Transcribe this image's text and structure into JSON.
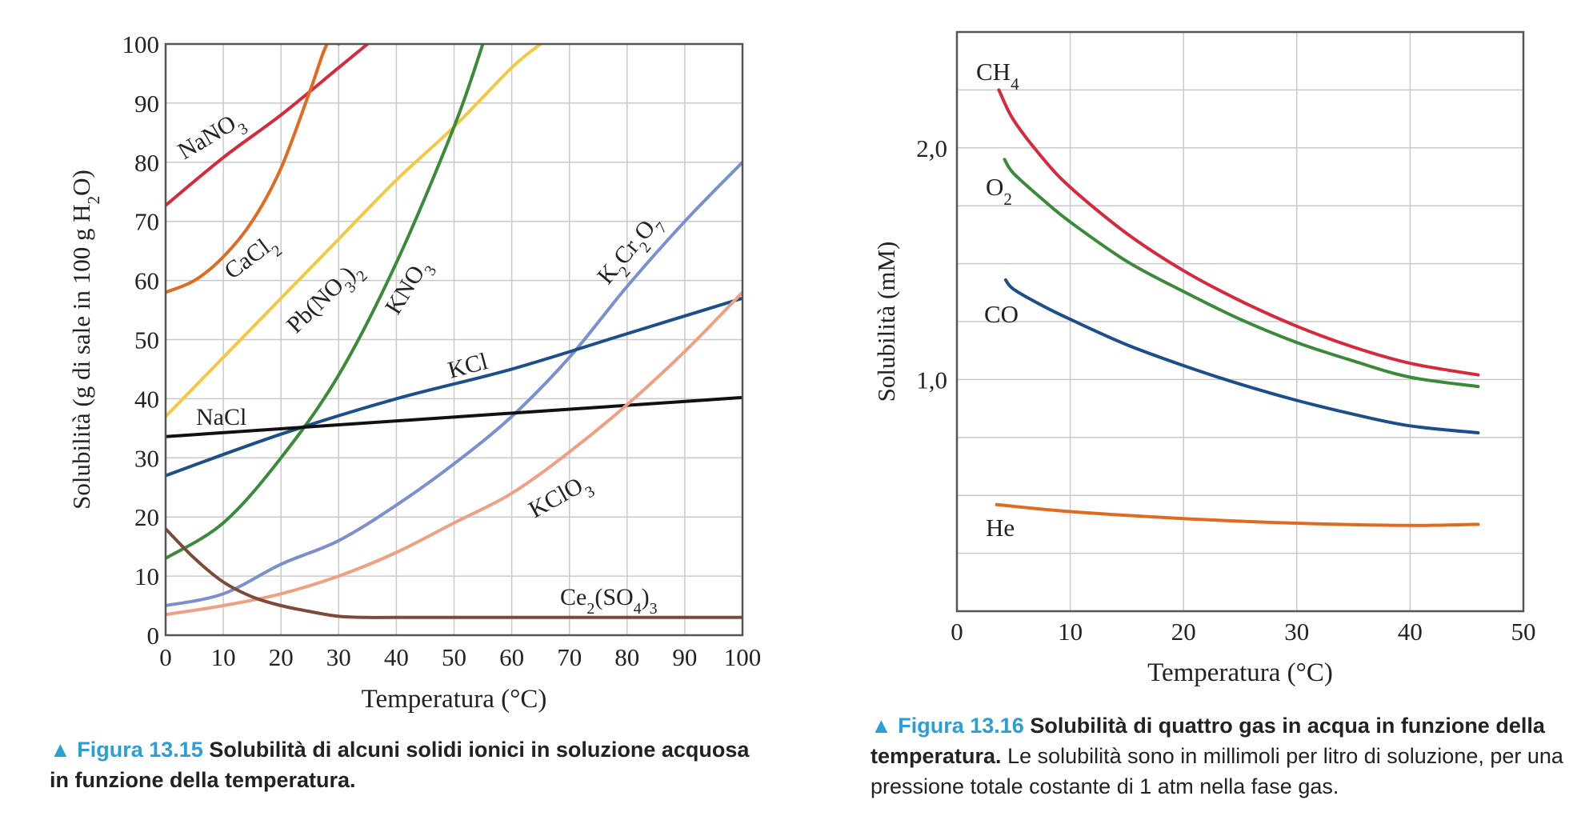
{
  "chart_data": [
    {
      "type": "line",
      "xlabel": "Temperatura (°C)",
      "ylabel_parts": [
        "Solubilità (g di sale in 100 g H",
        "2",
        "O)"
      ],
      "xlim": [
        0,
        100
      ],
      "ylim": [
        0,
        100
      ],
      "xticks": [
        0,
        10,
        20,
        30,
        40,
        50,
        60,
        70,
        80,
        90,
        100
      ],
      "yticks": [
        0,
        10,
        20,
        30,
        40,
        50,
        60,
        70,
        80,
        90,
        100
      ],
      "grid": true,
      "series": [
        {
          "name": "NaNO₃",
          "color": "#d8283c",
          "x": [
            0,
            10,
            20,
            30,
            35
          ],
          "y": [
            72.7,
            80.8,
            88.0,
            96.0,
            100
          ]
        },
        {
          "name": "CaCl₂",
          "color": "#e06a20",
          "x": [
            0,
            5,
            10,
            15,
            20,
            25,
            28,
            30
          ],
          "y": [
            58,
            60,
            64,
            70,
            79,
            92,
            100,
            100
          ]
        },
        {
          "name": "Pb(NO₃)₂",
          "color": "#f5c842",
          "x": [
            0,
            10,
            20,
            30,
            40,
            50,
            60,
            65
          ],
          "y": [
            37,
            47,
            57,
            67,
            77,
            86,
            96,
            100
          ]
        },
        {
          "name": "KNO₃",
          "color": "#3a8a3a",
          "x": [
            0,
            10,
            20,
            30,
            40,
            50,
            55
          ],
          "y": [
            13,
            19,
            30,
            44,
            63,
            86,
            100
          ]
        },
        {
          "name": "K₂Cr₂O₇",
          "color": "#7b8fcf",
          "x": [
            0,
            10,
            20,
            30,
            40,
            50,
            60,
            70,
            80,
            90,
            100
          ],
          "y": [
            5,
            7,
            12,
            16,
            22,
            29,
            37,
            47,
            59,
            70,
            80
          ]
        },
        {
          "name": "KCl",
          "color": "#1b4f8a",
          "x": [
            0,
            20,
            40,
            60,
            80,
            100
          ],
          "y": [
            27,
            34,
            40,
            45,
            51,
            57
          ]
        },
        {
          "name": "NaCl",
          "color": "#111111",
          "x": [
            0,
            100
          ],
          "y": [
            33.6,
            40.2
          ]
        },
        {
          "name": "KClO₃",
          "color": "#f0a080",
          "x": [
            0,
            10,
            20,
            30,
            40,
            50,
            60,
            70,
            80,
            90,
            100
          ],
          "y": [
            3.5,
            5,
            7,
            10,
            14,
            19,
            24,
            31,
            39,
            48,
            58
          ]
        },
        {
          "name": "Ce₂(SO₄)₃",
          "color": "#7b4a3a",
          "x": [
            0,
            5,
            10,
            15,
            20,
            25,
            30,
            35,
            40,
            60,
            80,
            100
          ],
          "y": [
            18,
            13,
            9,
            6.5,
            5,
            4,
            3.2,
            3,
            3,
            3,
            3,
            3
          ]
        }
      ],
      "labels": [
        {
          "series": "NaNO₃",
          "parts": [
            [
              "Na",
              "n"
            ],
            [
              "NO",
              "n"
            ],
            [
              "3",
              "sub"
            ]
          ]
        },
        {
          "series": "CaCl₂",
          "parts": [
            [
              "CaCl",
              "n"
            ],
            [
              "2",
              "sub"
            ]
          ]
        },
        {
          "series": "Pb(NO₃)₂",
          "parts": [
            [
              "Pb(NO",
              "n"
            ],
            [
              "3",
              "sub"
            ],
            [
              ")",
              "n"
            ],
            [
              "2",
              "sub"
            ]
          ]
        },
        {
          "series": "KNO₃",
          "parts": [
            [
              "KNO",
              "n"
            ],
            [
              "3",
              "sub"
            ]
          ]
        },
        {
          "series": "K₂Cr₂O₇",
          "parts": [
            [
              "K",
              "n"
            ],
            [
              "2",
              "sub"
            ],
            [
              "Cr",
              "n"
            ],
            [
              "2",
              "sub"
            ],
            [
              "O",
              "n"
            ],
            [
              "7",
              "sub"
            ]
          ]
        },
        {
          "series": "KCl",
          "parts": [
            [
              "KCl",
              "n"
            ]
          ]
        },
        {
          "series": "NaCl",
          "parts": [
            [
              "NaCl",
              "n"
            ]
          ]
        },
        {
          "series": "KClO₃",
          "parts": [
            [
              "KClO",
              "n"
            ],
            [
              "3",
              "sub"
            ]
          ]
        },
        {
          "series": "Ce₂(SO₄)₃",
          "parts": [
            [
              "Ce",
              "n"
            ],
            [
              "2",
              "sub"
            ],
            [
              "(SO",
              "n"
            ],
            [
              "4",
              "sub"
            ],
            [
              ")",
              "n"
            ],
            [
              "3",
              "sub"
            ]
          ]
        }
      ]
    },
    {
      "type": "line",
      "xlabel": "Temperatura (°C)",
      "ylabel": "Solubilità (mM)",
      "xlim": [
        0,
        50
      ],
      "ylim": [
        0,
        2.5
      ],
      "xticks": [
        0,
        10,
        20,
        30,
        40,
        50
      ],
      "ytick_labels": [
        {
          "value": 1.0,
          "text": "1,0"
        },
        {
          "value": 2.0,
          "text": "2,0"
        }
      ],
      "grid": true,
      "series": [
        {
          "name": "CH₄",
          "color": "#d8283c",
          "x": [
            3.7,
            5,
            7.5,
            10,
            15,
            20,
            25,
            30,
            35,
            40,
            46
          ],
          "y": [
            2.25,
            2.12,
            1.96,
            1.83,
            1.63,
            1.47,
            1.34,
            1.23,
            1.14,
            1.07,
            1.02
          ]
        },
        {
          "name": "O₂",
          "color": "#3a8a3a",
          "x": [
            4.2,
            5,
            7.5,
            10,
            15,
            20,
            25,
            30,
            35,
            40,
            46
          ],
          "y": [
            1.95,
            1.89,
            1.78,
            1.68,
            1.51,
            1.38,
            1.26,
            1.16,
            1.08,
            1.01,
            0.97
          ]
        },
        {
          "name": "CO",
          "color": "#1b4f8a",
          "x": [
            4.3,
            5,
            7.5,
            10,
            15,
            20,
            25,
            30,
            35,
            40,
            46
          ],
          "y": [
            1.43,
            1.39,
            1.32,
            1.26,
            1.15,
            1.06,
            0.98,
            0.91,
            0.85,
            0.8,
            0.77
          ]
        },
        {
          "name": "He",
          "color": "#e06a20",
          "x": [
            3.5,
            10,
            20,
            30,
            40,
            46
          ],
          "y": [
            0.46,
            0.43,
            0.4,
            0.38,
            0.37,
            0.375
          ]
        }
      ],
      "labels": [
        {
          "series": "CH₄",
          "parts": [
            [
              "CH",
              "n"
            ],
            [
              "4",
              "sub"
            ]
          ]
        },
        {
          "series": "O₂",
          "parts": [
            [
              "O",
              "n"
            ],
            [
              "2",
              "sub"
            ]
          ]
        },
        {
          "series": "CO",
          "parts": [
            [
              "CO",
              "n"
            ]
          ]
        },
        {
          "series": "He",
          "parts": [
            [
              "He",
              "n"
            ]
          ]
        }
      ]
    }
  ],
  "captions": [
    {
      "figure": "▲ Figura 13.15",
      "bold": "Solubilità di alcuni solidi ionici in soluzione acquosa in funzione della temperatura.",
      "text": ""
    },
    {
      "figure": "▲ Figura 13.16",
      "bold": "Solubilità di quattro gas in acqua in funzione della temperatura.",
      "text": "Le solubilità sono in millimoli per litro di soluzione, per una pressione totale costante di 1 atm nella fase gas."
    }
  ]
}
